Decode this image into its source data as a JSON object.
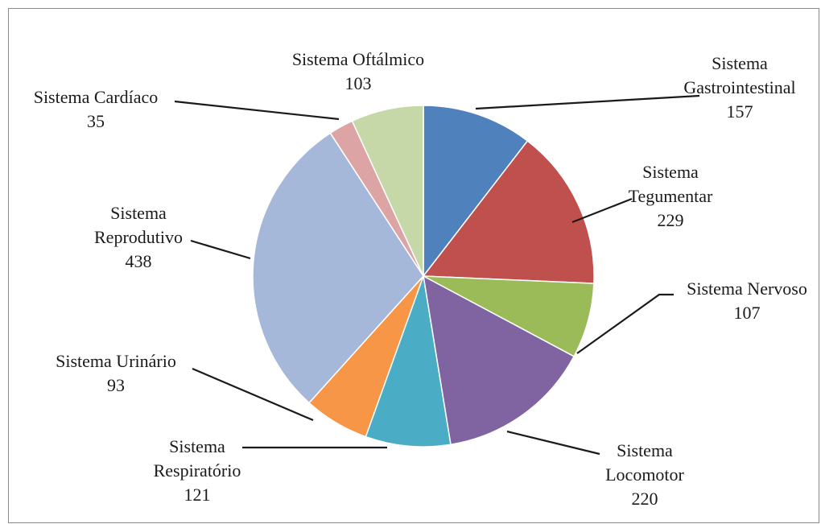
{
  "chart_data": {
    "type": "pie",
    "title": "",
    "start_angle_deg": 0,
    "direction": "clockwise",
    "slices": [
      {
        "lines": [
          "Sistema",
          "Gastrointestinal"
        ],
        "value": 157,
        "color": "#4f81bd"
      },
      {
        "lines": [
          "Sistema",
          "Tegumentar"
        ],
        "value": 229,
        "color": "#c0504d"
      },
      {
        "lines": [
          "Sistema Nervoso"
        ],
        "value": 107,
        "color": "#9bbb59"
      },
      {
        "lines": [
          "Sistema",
          "Locomotor"
        ],
        "value": 220,
        "color": "#8064a2"
      },
      {
        "lines": [
          "Sistema",
          "Respiratório"
        ],
        "value": 121,
        "color": "#4bacc6"
      },
      {
        "lines": [
          "Sistema Urinário"
        ],
        "value": 93,
        "color": "#f79646"
      },
      {
        "lines": [
          "Sistema",
          "Reprodutivo"
        ],
        "value": 438,
        "color": "#a5b8d9"
      },
      {
        "lines": [
          "Sistema Cardíaco"
        ],
        "value": 35,
        "color": "#dda4a6"
      },
      {
        "lines": [
          "Sistema Oftálmico"
        ],
        "value": 103,
        "color": "#c6d8a8"
      }
    ]
  }
}
